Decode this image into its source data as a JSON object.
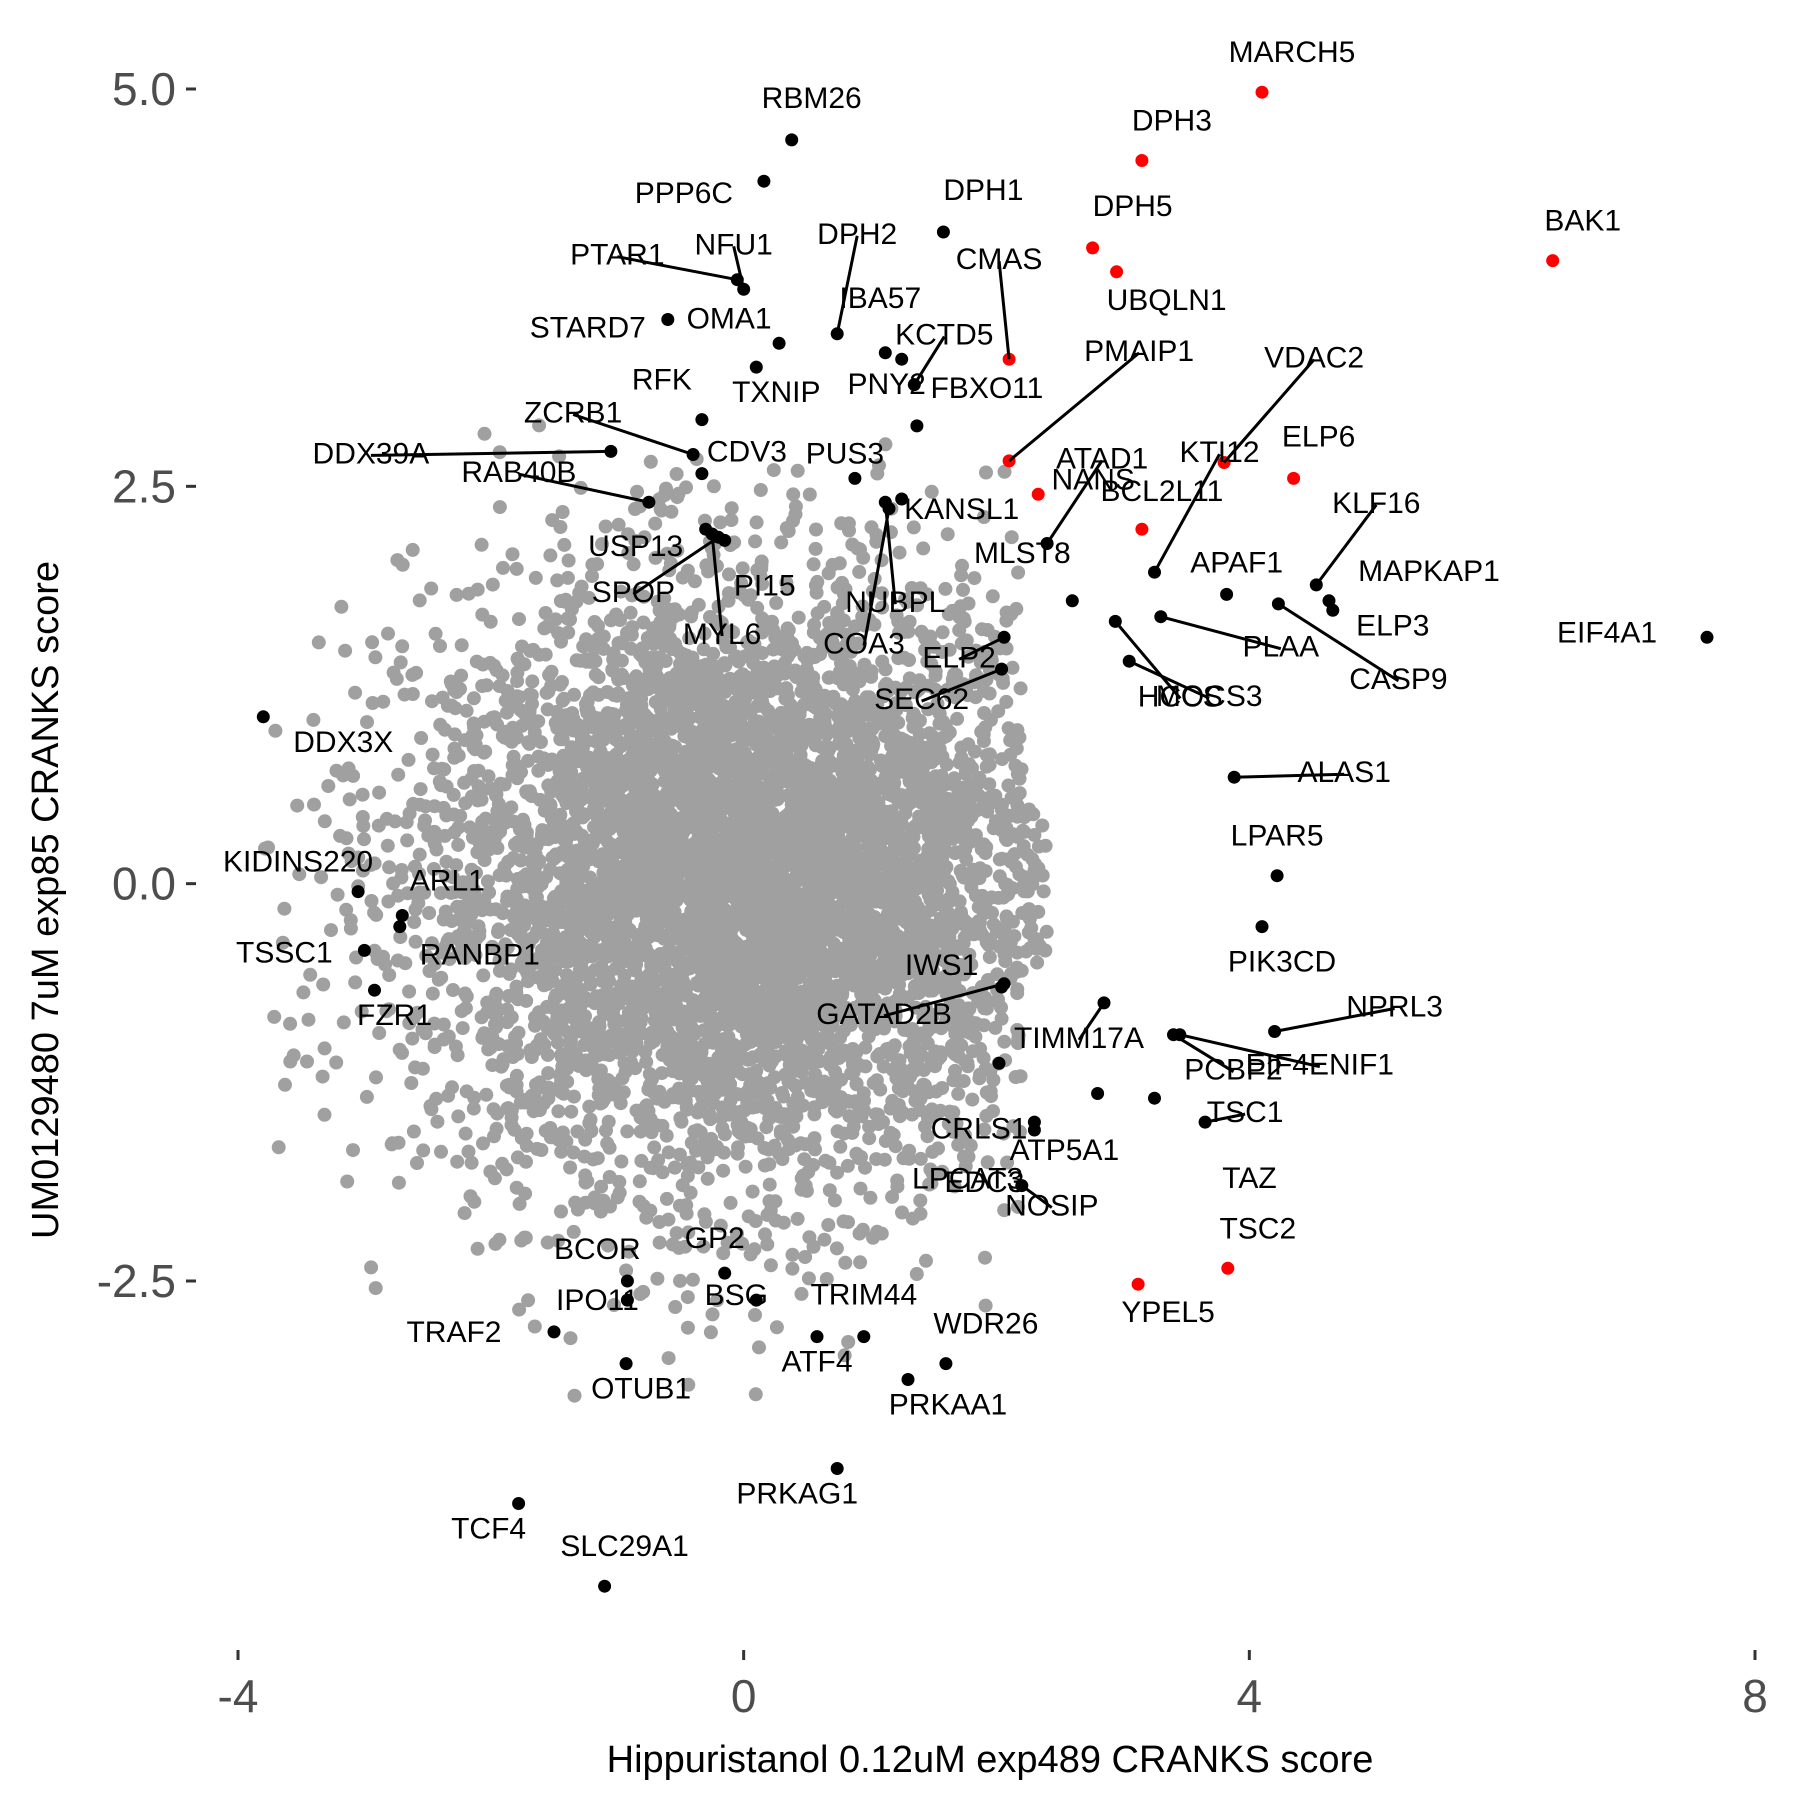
{
  "chart_data": {
    "type": "scatter",
    "title": "",
    "xlabel": "Hippuristanol 0.12uM exp489 CRANKS score",
    "ylabel": "UM0129480 7uM exp85 CRANKS score",
    "xlim": [
      -4.1,
      7.8
    ],
    "ylim": [
      -4.7,
      5.2
    ],
    "xticks": [
      -4,
      0,
      4,
      8
    ],
    "yticks": [
      5.0,
      2.5,
      0.0,
      -2.5
    ],
    "xtick_labels": [
      "-4",
      "0",
      "4",
      "8"
    ],
    "ytick_labels": [
      "5.0",
      "2.5",
      "0.0",
      "-2.5"
    ],
    "grid": false,
    "colors": {
      "background": "#a0a0a0",
      "highlight": "#000000",
      "special": "#ff0000"
    },
    "background_cloud": {
      "description_count": 6000,
      "center": [
        0.0,
        0.0
      ],
      "sd_x": 1.3,
      "sd_y": 0.95
    },
    "labeled_points": [
      {
        "label": "MARCH5",
        "x": 4.1,
        "y": 4.98,
        "color": "red"
      },
      {
        "label": "DPH3",
        "x": 3.15,
        "y": 4.55,
        "color": "red"
      },
      {
        "label": "DPH5",
        "x": 2.76,
        "y": 4.0,
        "color": "red"
      },
      {
        "label": "UBQLN1",
        "x": 2.95,
        "y": 3.85,
        "color": "red"
      },
      {
        "label": "BAK1",
        "x": 6.4,
        "y": 3.92,
        "color": "red"
      },
      {
        "label": "CMAS",
        "x": 2.1,
        "y": 3.3,
        "color": "red"
      },
      {
        "label": "PMAIP1",
        "x": 2.1,
        "y": 2.66,
        "color": "red"
      },
      {
        "label": "NANS",
        "x": 2.33,
        "y": 2.45,
        "color": "red"
      },
      {
        "label": "VDAC2",
        "x": 3.8,
        "y": 2.65,
        "color": "red"
      },
      {
        "label": "ELP6",
        "x": 4.35,
        "y": 2.55,
        "color": "red"
      },
      {
        "label": "BCL2L11",
        "x": 3.15,
        "y": 2.23,
        "color": "red"
      },
      {
        "label": "TSC2",
        "x": 3.83,
        "y": -2.42,
        "color": "red"
      },
      {
        "label": "YPEL5",
        "x": 3.12,
        "y": -2.52,
        "color": "red"
      },
      {
        "label": "RBM26",
        "x": 0.38,
        "y": 4.68,
        "color": "black"
      },
      {
        "label": "PPP6C",
        "x": 0.16,
        "y": 4.42,
        "color": "black"
      },
      {
        "label": "DPH1",
        "x": 1.58,
        "y": 4.1,
        "color": "black"
      },
      {
        "label": "NFU1",
        "x": 0.0,
        "y": 3.74,
        "color": "black"
      },
      {
        "label": "PTAR1",
        "x": -0.05,
        "y": 3.8,
        "color": "black"
      },
      {
        "label": "STARD7",
        "x": -0.6,
        "y": 3.55,
        "color": "black"
      },
      {
        "label": "OMA1",
        "x": 0.28,
        "y": 3.4,
        "color": "black"
      },
      {
        "label": "DPH2",
        "x": 0.74,
        "y": 3.46,
        "color": "black"
      },
      {
        "label": "IBA57",
        "x": 1.12,
        "y": 3.34,
        "color": "black"
      },
      {
        "label": "KCTD5",
        "x": 1.35,
        "y": 3.14,
        "color": "black"
      },
      {
        "label": "TXNIP",
        "x": 0.1,
        "y": 3.25,
        "color": "black"
      },
      {
        "label": "PNY2",
        "x": 1.25,
        "y": 3.3,
        "color": "black"
      },
      {
        "label": "RFK",
        "x": -0.33,
        "y": 2.92,
        "color": "black"
      },
      {
        "label": "ZCRB1",
        "x": -0.4,
        "y": 2.7,
        "color": "black"
      },
      {
        "label": "DDX39A",
        "x": -1.05,
        "y": 2.72,
        "color": "black"
      },
      {
        "label": "CDV3",
        "x": -0.33,
        "y": 2.58,
        "color": "black"
      },
      {
        "label": "RAB40B",
        "x": -0.75,
        "y": 2.4,
        "color": "black"
      },
      {
        "label": "PUS3",
        "x": 0.88,
        "y": 2.55,
        "color": "black"
      },
      {
        "label": "FBXO11",
        "x": 1.37,
        "y": 2.88,
        "color": "black"
      },
      {
        "label": "KANSL1",
        "x": 1.25,
        "y": 2.42,
        "color": "black"
      },
      {
        "label": "USP13",
        "x": -0.3,
        "y": 2.23,
        "color": "black"
      },
      {
        "label": "SPOP",
        "x": -0.2,
        "y": 2.18,
        "color": "black"
      },
      {
        "label": "PI15",
        "x": -0.15,
        "y": 2.16,
        "color": "black"
      },
      {
        "label": "MYL6",
        "x": -0.25,
        "y": 2.2,
        "color": "black"
      },
      {
        "label": "NUBPL",
        "x": 1.12,
        "y": 2.4,
        "color": "black"
      },
      {
        "label": "COA3",
        "x": 1.15,
        "y": 2.36,
        "color": "black"
      },
      {
        "label": "ATAD1",
        "x": 2.4,
        "y": 2.14,
        "color": "black"
      },
      {
        "label": "KTI12",
        "x": 3.25,
        "y": 1.96,
        "color": "black"
      },
      {
        "label": "APAF1",
        "x": 3.82,
        "y": 1.82,
        "color": "black"
      },
      {
        "label": "KLF16",
        "x": 4.53,
        "y": 1.88,
        "color": "black"
      },
      {
        "label": "MAPKAP1",
        "x": 4.63,
        "y": 1.78,
        "color": "black"
      },
      {
        "label": "ELP3",
        "x": 4.66,
        "y": 1.72,
        "color": "black"
      },
      {
        "label": "EIF4A1",
        "x": 7.62,
        "y": 1.55,
        "color": "black"
      },
      {
        "label": "MLST8",
        "x": 2.6,
        "y": 1.78,
        "color": "black"
      },
      {
        "label": "PLAA",
        "x": 3.3,
        "y": 1.68,
        "color": "black"
      },
      {
        "label": "CASP9",
        "x": 4.23,
        "y": 1.76,
        "color": "black"
      },
      {
        "label": "ELP2",
        "x": 2.06,
        "y": 1.55,
        "color": "black"
      },
      {
        "label": "SEC62",
        "x": 2.04,
        "y": 1.35,
        "color": "black"
      },
      {
        "label": "MOCS3",
        "x": 3.05,
        "y": 1.4,
        "color": "black"
      },
      {
        "label": "HCCS",
        "x": 2.94,
        "y": 1.65,
        "color": "black"
      },
      {
        "label": "ALAS1",
        "x": 3.88,
        "y": 0.67,
        "color": "black"
      },
      {
        "label": "DDX3X",
        "x": -3.8,
        "y": 1.05,
        "color": "black"
      },
      {
        "label": "LPAR5",
        "x": 4.22,
        "y": 0.05,
        "color": "black"
      },
      {
        "label": "PIK3CD",
        "x": 4.1,
        "y": -0.27,
        "color": "black"
      },
      {
        "label": "KIDINS220",
        "x": -3.05,
        "y": -0.05,
        "color": "black"
      },
      {
        "label": "ARL1",
        "x": -2.7,
        "y": -0.2,
        "color": "black"
      },
      {
        "label": "RANBP1",
        "x": -2.72,
        "y": -0.27,
        "color": "black"
      },
      {
        "label": "TSSC1",
        "x": -3.0,
        "y": -0.42,
        "color": "black"
      },
      {
        "label": "FZR1",
        "x": -2.92,
        "y": -0.67,
        "color": "black"
      },
      {
        "label": "IWS1",
        "x": 2.04,
        "y": -0.65,
        "color": "black"
      },
      {
        "label": "GATAD2B",
        "x": 2.06,
        "y": -0.63,
        "color": "black"
      },
      {
        "label": "NPRL3",
        "x": 4.2,
        "y": -0.93,
        "color": "black"
      },
      {
        "label": "TIMM17A",
        "x": 2.85,
        "y": -0.75,
        "color": "black"
      },
      {
        "label": "PCBP2",
        "x": 3.4,
        "y": -0.95,
        "color": "black"
      },
      {
        "label": "EIF4ENIF1",
        "x": 3.45,
        "y": -0.95,
        "color": "black"
      },
      {
        "label": "CRLS1",
        "x": 2.02,
        "y": -1.13,
        "color": "black"
      },
      {
        "label": "TSC1",
        "x": 3.65,
        "y": -1.5,
        "color": "black"
      },
      {
        "label": "TAZ",
        "x": 3.25,
        "y": -1.35,
        "color": "black"
      },
      {
        "label": "ATP5A1",
        "x": 2.3,
        "y": -1.55,
        "color": "black"
      },
      {
        "label": "EDC3",
        "x": 2.3,
        "y": -1.5,
        "color": "black"
      },
      {
        "label": "NOSIP",
        "x": 2.2,
        "y": -1.9,
        "color": "black"
      },
      {
        "label": "LPCAT3",
        "x": 2.8,
        "y": -1.32,
        "color": "black"
      },
      {
        "label": "BCOR",
        "x": -0.92,
        "y": -2.5,
        "color": "black"
      },
      {
        "label": "GP2",
        "x": -0.15,
        "y": -2.45,
        "color": "black"
      },
      {
        "label": "TRIM44",
        "x": 0.95,
        "y": -2.85,
        "color": "black"
      },
      {
        "label": "TRAF2",
        "x": -1.5,
        "y": -2.82,
        "color": "black"
      },
      {
        "label": "IPO11",
        "x": -0.92,
        "y": -2.62,
        "color": "black"
      },
      {
        "label": "BSG",
        "x": 0.1,
        "y": -2.62,
        "color": "black"
      },
      {
        "label": "ATF4",
        "x": 0.58,
        "y": -2.85,
        "color": "black"
      },
      {
        "label": "WDR26",
        "x": 1.6,
        "y": -3.02,
        "color": "black"
      },
      {
        "label": "OTUB1",
        "x": -0.93,
        "y": -3.02,
        "color": "black"
      },
      {
        "label": "PRKAA1",
        "x": 1.3,
        "y": -3.12,
        "color": "black"
      },
      {
        "label": "PRKAG1",
        "x": 0.74,
        "y": -3.68,
        "color": "black"
      },
      {
        "label": "TCF4",
        "x": -1.78,
        "y": -3.9,
        "color": "black"
      },
      {
        "label": "SLC29A1",
        "x": -1.1,
        "y": -4.42,
        "color": "black"
      }
    ]
  }
}
